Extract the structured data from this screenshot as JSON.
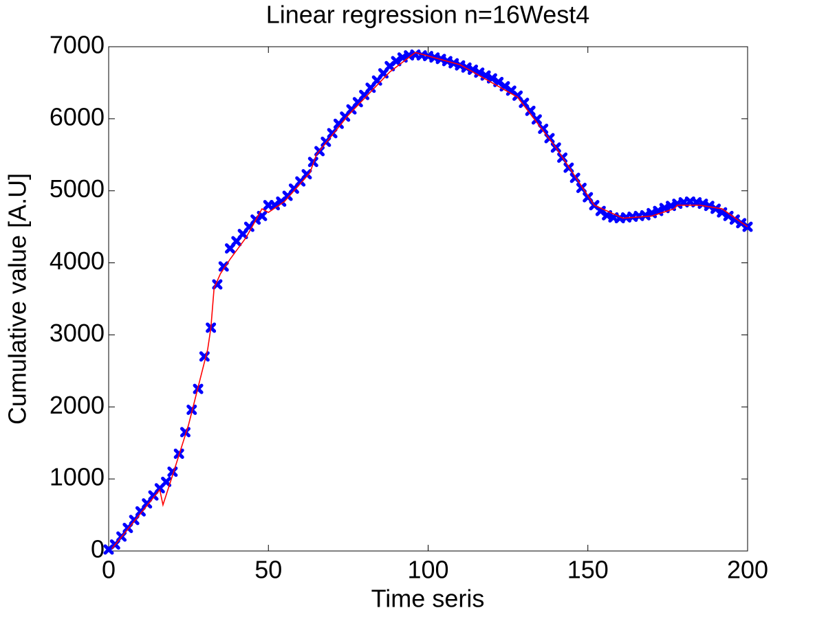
{
  "chart_data": {
    "type": "scatter",
    "title": "Linear regression n=16West4",
    "x_label": "Time seris",
    "y_label": "Cumulative value [A.U]",
    "xlim": [
      0,
      200
    ],
    "ylim": [
      0,
      7000
    ],
    "xticks": [
      0,
      50,
      100,
      150,
      200
    ],
    "yticks": [
      0,
      1000,
      2000,
      3000,
      4000,
      5000,
      6000,
      7000
    ],
    "grid": false,
    "series": [
      {
        "kind": "markers",
        "color": "#0000ff",
        "x": [
          0,
          2,
          4,
          6,
          8,
          10,
          12,
          14,
          16,
          18,
          20,
          22,
          24,
          26,
          28,
          30,
          32,
          34,
          36,
          38,
          40,
          42,
          44,
          46,
          48,
          50,
          52,
          54,
          56,
          58,
          60,
          62,
          64,
          66,
          68,
          70,
          72,
          74,
          76,
          78,
          80,
          82,
          84,
          86,
          88,
          90,
          92,
          94,
          96,
          98,
          100,
          102,
          104,
          106,
          108,
          110,
          112,
          114,
          116,
          118,
          120,
          122,
          124,
          126,
          128,
          130,
          132,
          134,
          136,
          138,
          140,
          142,
          144,
          146,
          148,
          150,
          152,
          154,
          156,
          158,
          160,
          162,
          164,
          166,
          168,
          170,
          172,
          174,
          176,
          178,
          180,
          182,
          184,
          186,
          188,
          190,
          192,
          194,
          196,
          198,
          200
        ],
        "values": [
          20,
          90,
          200,
          320,
          430,
          550,
          660,
          770,
          870,
          960,
          1100,
          1350,
          1650,
          1960,
          2250,
          2700,
          3100,
          3700,
          3950,
          4200,
          4300,
          4400,
          4500,
          4600,
          4650,
          4800,
          4800,
          4850,
          4930,
          5030,
          5130,
          5230,
          5400,
          5550,
          5680,
          5800,
          5930,
          6030,
          6130,
          6230,
          6330,
          6430,
          6530,
          6630,
          6730,
          6800,
          6850,
          6880,
          6890,
          6880,
          6870,
          6850,
          6830,
          6800,
          6770,
          6740,
          6710,
          6680,
          6640,
          6600,
          6560,
          6510,
          6450,
          6390,
          6320,
          6220,
          6110,
          5990,
          5860,
          5730,
          5600,
          5460,
          5320,
          5180,
          5040,
          4910,
          4800,
          4720,
          4660,
          4630,
          4620,
          4630,
          4640,
          4650,
          4660,
          4690,
          4720,
          4760,
          4790,
          4820,
          4840,
          4850,
          4840,
          4820,
          4790,
          4750,
          4700,
          4650,
          4600,
          4550,
          4500
        ]
      },
      {
        "kind": "line",
        "color": "#ff0000",
        "x": [
          1,
          16,
          17,
          20,
          25,
          31,
          32,
          33,
          35,
          38,
          43,
          48,
          50,
          55,
          63,
          65,
          75,
          88,
          96,
          110,
          128,
          140,
          152,
          161,
          170,
          177,
          178,
          185,
          192,
          200
        ],
        "values": [
          30,
          850,
          640,
          1050,
          1750,
          2800,
          3100,
          3650,
          3850,
          4050,
          4350,
          4750,
          4700,
          4850,
          5250,
          5500,
          6050,
          6650,
          6920,
          6750,
          6300,
          5600,
          4800,
          4620,
          4650,
          4750,
          4800,
          4800,
          4750,
          4500
        ]
      }
    ]
  }
}
